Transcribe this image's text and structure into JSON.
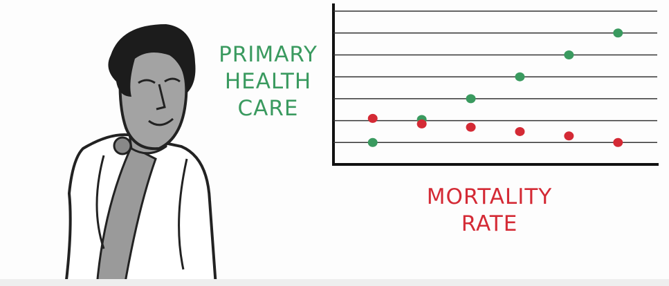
{
  "chart_data": {
    "type": "scatter",
    "x": [
      1,
      2,
      3,
      4,
      5,
      6
    ],
    "series": [
      {
        "name": "PRIMARY HEALTH CARE",
        "color": "#3a9a5f",
        "values": [
          1,
          2.05,
          3,
          4,
          5,
          6
        ]
      },
      {
        "name": "MORTALITY RATE",
        "color": "#d42a35",
        "values": [
          2.1,
          1.85,
          1.7,
          1.5,
          1.3,
          1
        ]
      }
    ],
    "xlim": [
      0.2,
      6.8
    ],
    "ylim": [
      0,
      7.35
    ],
    "yticks": [
      1,
      2,
      3,
      4,
      5,
      6,
      7
    ],
    "grid": true
  }
}
